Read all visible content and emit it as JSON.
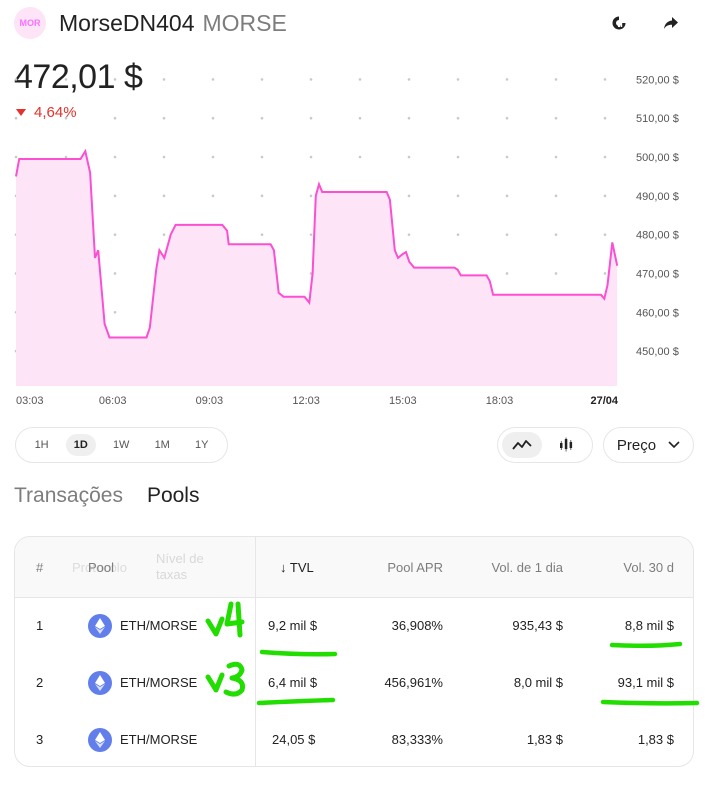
{
  "header": {
    "logo_text": "MOR",
    "name": "MorseDN404",
    "symbol": "MORSE",
    "icons": [
      "refresh-sync-icon",
      "share-arrow-icon"
    ]
  },
  "price": {
    "value": "472,01 $",
    "change": "4,64%",
    "change_direction": "down",
    "change_color": "#e5312b"
  },
  "chart_data": {
    "type": "area",
    "line_color": "#fc4fd1",
    "fill_color": "#fde4f6",
    "ylim": [
      441,
      525
    ],
    "y_ticks": [
      520,
      510,
      500,
      490,
      480,
      470,
      460,
      450
    ],
    "y_tick_labels": [
      "520,00 $",
      "510,00 $",
      "500,00 $",
      "490,00 $",
      "480,00 $",
      "470,00 $",
      "460,00 $",
      "450,00 $"
    ],
    "x_tick_labels": [
      "03:03",
      "06:03",
      "09:03",
      "12:03",
      "15:03",
      "18:03",
      "27/04"
    ],
    "x_hours": [
      0,
      3,
      6,
      9,
      12,
      15,
      18
    ],
    "xlim": [
      0,
      18.8
    ],
    "grid": "dots",
    "points": [
      [
        0,
        495
      ],
      [
        0.1,
        499.5
      ],
      [
        2.0,
        499.5
      ],
      [
        2.15,
        501.5
      ],
      [
        2.3,
        496
      ],
      [
        2.45,
        474
      ],
      [
        2.55,
        476
      ],
      [
        2.75,
        457
      ],
      [
        2.9,
        453.5
      ],
      [
        4.05,
        453.5
      ],
      [
        4.15,
        456
      ],
      [
        4.35,
        471
      ],
      [
        4.45,
        476
      ],
      [
        4.6,
        474
      ],
      [
        4.8,
        480
      ],
      [
        4.95,
        482.5
      ],
      [
        6.4,
        482.5
      ],
      [
        6.55,
        481
      ],
      [
        6.6,
        477.5
      ],
      [
        7.9,
        477.5
      ],
      [
        8.0,
        476
      ],
      [
        8.15,
        465
      ],
      [
        8.3,
        464
      ],
      [
        8.95,
        464
      ],
      [
        9.1,
        462.5
      ],
      [
        9.2,
        470
      ],
      [
        9.3,
        490
      ],
      [
        9.4,
        493
      ],
      [
        9.5,
        491
      ],
      [
        11.5,
        491
      ],
      [
        11.6,
        489
      ],
      [
        11.75,
        476
      ],
      [
        11.85,
        474
      ],
      [
        12.0,
        475
      ],
      [
        12.1,
        475.5
      ],
      [
        12.2,
        473
      ],
      [
        12.35,
        471.5
      ],
      [
        13.6,
        471.5
      ],
      [
        13.7,
        471
      ],
      [
        13.8,
        469.5
      ],
      [
        14.6,
        469.5
      ],
      [
        14.7,
        468
      ],
      [
        14.8,
        464.5
      ],
      [
        18.15,
        464.5
      ],
      [
        18.25,
        463.5
      ],
      [
        18.35,
        467
      ],
      [
        18.5,
        478
      ],
      [
        18.65,
        472
      ]
    ]
  },
  "time_ranges": [
    "1H",
    "1D",
    "1W",
    "1M",
    "1Y"
  ],
  "active_range": "1D",
  "chart_types": [
    "line-chart-icon",
    "candlestick-icon"
  ],
  "metric_select": {
    "label": "Preço"
  },
  "tabs": [
    {
      "label": "Transações",
      "active": false
    },
    {
      "label": "Pools",
      "active": true
    }
  ],
  "table": {
    "headers": {
      "index": "#",
      "pool": "Pool",
      "pool_ghost": "Protocolo",
      "fee_ghost": "Nível de taxas",
      "tvl": "TVL",
      "apr": "Pool APR",
      "vol1d": "Vol. de 1 dia",
      "vol30d": "Vol. 30 d"
    },
    "sort_icon": "arrow-down-icon",
    "rows": [
      {
        "index": "1",
        "pool": "ETH/MORSE",
        "tvl": "9,2 mil $",
        "apr": "36,908%",
        "vol1d": "935,43 $",
        "vol30d": "8,8 mil $",
        "note": "v4"
      },
      {
        "index": "2",
        "pool": "ETH/MORSE",
        "tvl": "6,4 mil $",
        "apr": "456,961%",
        "vol1d": "8,0 mil $",
        "vol30d": "93,1 mil $",
        "note": "v3"
      },
      {
        "index": "3",
        "pool": "ETH/MORSE",
        "tvl": "24,05 $",
        "apr": "83,333%",
        "vol1d": "1,83 $",
        "vol30d": "1,83 $"
      }
    ]
  },
  "annotation_color": "#22dd00"
}
